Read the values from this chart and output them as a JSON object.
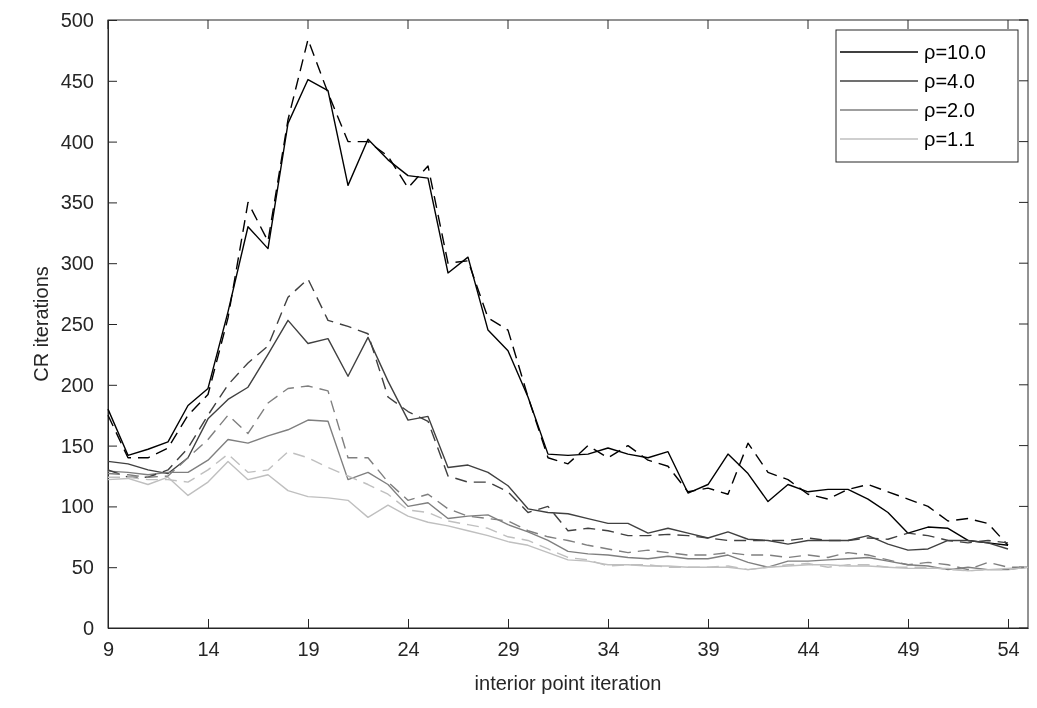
{
  "chart_data": {
    "type": "line",
    "xlabel": "interior point iteration",
    "ylabel": "CR iterations",
    "x": [
      9,
      10,
      11,
      12,
      13,
      14,
      15,
      16,
      17,
      18,
      19,
      20,
      21,
      22,
      23,
      24,
      25,
      26,
      27,
      28,
      29,
      30,
      31,
      32,
      33,
      34,
      35,
      36,
      37,
      38,
      39,
      40,
      41,
      42,
      43,
      44,
      45,
      46,
      47,
      48,
      49,
      50,
      51,
      52,
      53,
      54,
      55
    ],
    "xlim": [
      9,
      55
    ],
    "xticks": [
      9,
      14,
      19,
      24,
      29,
      34,
      39,
      44,
      49,
      54
    ],
    "ylim": [
      0,
      500
    ],
    "yticks": [
      0,
      50,
      100,
      150,
      200,
      250,
      300,
      350,
      400,
      450,
      500
    ],
    "grid": false,
    "legend": "top right",
    "marker": "none",
    "series": [
      {
        "name": "ρ=10.0",
        "color": "#000000",
        "line_style": "solid",
        "values": [
          180,
          142,
          147,
          153,
          183,
          197,
          260,
          330,
          312,
          415,
          451,
          442,
          364,
          402,
          385,
          372,
          370,
          292,
          305,
          245,
          228,
          190,
          143,
          142,
          143,
          148,
          143,
          140,
          145,
          111,
          118,
          143,
          127,
          104,
          118,
          112,
          114,
          114,
          106,
          95,
          78,
          83,
          82,
          72,
          70,
          68,
          null
        ]
      },
      {
        "name": "ρ=4.0",
        "color": "#404040",
        "line_style": "solid",
        "values": [
          137,
          135,
          130,
          127,
          140,
          172,
          188,
          198,
          225,
          253,
          234,
          238,
          207,
          239,
          203,
          171,
          174,
          132,
          134,
          128,
          117,
          98,
          95,
          94,
          90,
          86,
          86,
          78,
          82,
          78,
          74,
          79,
          73,
          72,
          69,
          72,
          72,
          72,
          76,
          69,
          64,
          65,
          72,
          72,
          70,
          65,
          null
        ]
      },
      {
        "name": "ρ=2.0",
        "color": "#7f7f7f",
        "line_style": "solid",
        "values": [
          129,
          128,
          126,
          128,
          128,
          138,
          155,
          152,
          158,
          163,
          171,
          170,
          122,
          128,
          118,
          100,
          103,
          90,
          92,
          93,
          85,
          79,
          72,
          63,
          61,
          60,
          58,
          57,
          59,
          57,
          57,
          60,
          54,
          50,
          55,
          55,
          56,
          57,
          58,
          55,
          52,
          51,
          48,
          50,
          48,
          48,
          50
        ]
      },
      {
        "name": "ρ=1.1",
        "color": "#bfbfbf",
        "line_style": "solid",
        "values": [
          122,
          123,
          118,
          124,
          109,
          120,
          137,
          122,
          126,
          113,
          108,
          107,
          105,
          91,
          101,
          92,
          87,
          84,
          80,
          76,
          71,
          68,
          62,
          56,
          55,
          52,
          52,
          51,
          51,
          50,
          50,
          50,
          48,
          50,
          51,
          52,
          52,
          51,
          51,
          50,
          49,
          49,
          49,
          47,
          48,
          49,
          50
        ]
      },
      {
        "color": "#000000",
        "line_style": "dashed",
        "values": [
          175,
          140,
          140,
          148,
          175,
          192,
          255,
          350,
          318,
          418,
          484,
          440,
          400,
          400,
          388,
          362,
          380,
          300,
          302,
          255,
          245,
          190,
          140,
          135,
          150,
          140,
          150,
          138,
          133,
          112,
          115,
          110,
          152,
          128,
          122,
          110,
          106,
          114,
          118,
          112,
          106,
          100,
          88,
          90,
          86,
          68,
          null
        ]
      },
      {
        "color": "#404040",
        "line_style": "dashed",
        "values": [
          130,
          124,
          124,
          130,
          148,
          175,
          200,
          218,
          232,
          272,
          287,
          253,
          248,
          242,
          190,
          178,
          170,
          125,
          120,
          120,
          112,
          95,
          100,
          80,
          82,
          80,
          76,
          76,
          77,
          76,
          74,
          72,
          72,
          72,
          72,
          74,
          72,
          72,
          74,
          73,
          78,
          76,
          72,
          70,
          72,
          70,
          null
        ]
      },
      {
        "color": "#7f7f7f",
        "line_style": "dashed",
        "values": [
          127,
          126,
          124,
          125,
          140,
          155,
          175,
          160,
          185,
          197,
          199,
          195,
          140,
          140,
          120,
          105,
          110,
          98,
          92,
          90,
          88,
          80,
          75,
          72,
          68,
          65,
          62,
          64,
          62,
          60,
          60,
          62,
          60,
          60,
          58,
          60,
          58,
          62,
          60,
          56,
          52,
          54,
          52,
          48,
          54,
          50,
          50
        ]
      },
      {
        "color": "#bfbfbf",
        "line_style": "dashed",
        "values": [
          124,
          124,
          122,
          122,
          120,
          130,
          143,
          128,
          130,
          145,
          140,
          132,
          125,
          118,
          110,
          97,
          95,
          88,
          85,
          82,
          75,
          72,
          65,
          58,
          56,
          51,
          52,
          52,
          50,
          50,
          50,
          51,
          48,
          50,
          52,
          53,
          50,
          52,
          52,
          50,
          50,
          50,
          48,
          47,
          48,
          48,
          50
        ]
      }
    ]
  }
}
